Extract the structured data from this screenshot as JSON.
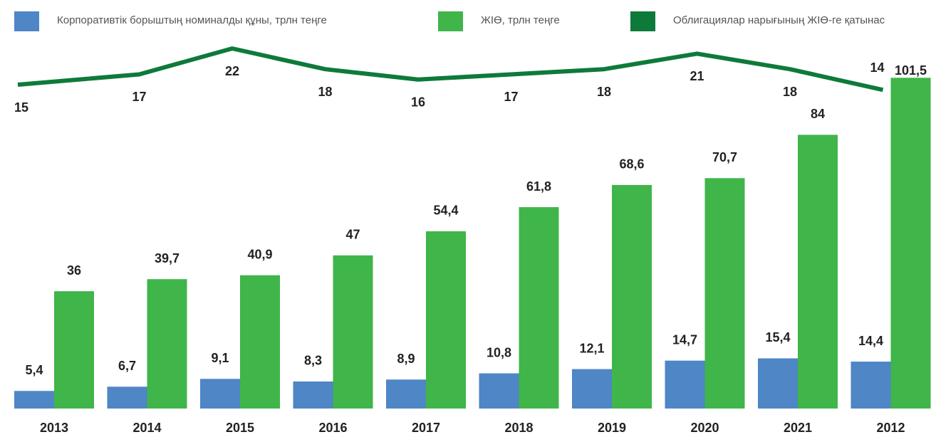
{
  "chart_data": {
    "type": "bar_line",
    "categories": [
      "2013",
      "2014",
      "2015",
      "2016",
      "2017",
      "2018",
      "2019",
      "2020",
      "2021",
      "2012"
    ],
    "series": [
      {
        "name": "Корпоративтік борыштың номиналды құны, трлн теңге",
        "color": "#4e86c6",
        "type": "bar",
        "values": [
          5.4,
          6.7,
          9.1,
          8.3,
          8.9,
          10.8,
          12.1,
          14.7,
          15.4,
          14.4
        ],
        "value_labels": [
          "5,4",
          "6,7",
          "9,1",
          "8,3",
          "8,9",
          "10,8",
          "12,1",
          "14,7",
          "15,4",
          "14,4"
        ]
      },
      {
        "name": "ЖІӨ, трлн теңге",
        "color": "#3fb54a",
        "type": "bar",
        "values": [
          36,
          39.7,
          40.9,
          47,
          54.4,
          61.8,
          68.6,
          70.7,
          84,
          101.5
        ],
        "value_labels": [
          "36",
          "39,7",
          "40,9",
          "47",
          "54,4",
          "61,8",
          "68,6",
          "70,7",
          "84",
          "101,5"
        ]
      },
      {
        "name": "Облигациялар нарығының ЖІӨ-ге қатынас",
        "color": "#0e7a3a",
        "type": "line",
        "axis": "y2",
        "values": [
          15,
          17,
          22,
          18,
          16,
          17,
          18,
          21,
          18,
          14
        ]
      }
    ],
    "ylim": [
      0,
      102
    ],
    "y2lim": [
      0,
      30
    ]
  }
}
